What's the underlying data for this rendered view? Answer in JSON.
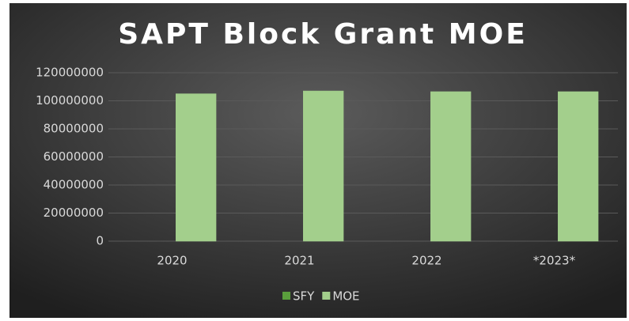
{
  "chart_data": {
    "type": "bar",
    "title": "SAPT Block Grant MOE",
    "categories": [
      "2020",
      "2021",
      "2022",
      "*2023*"
    ],
    "series": [
      {
        "name": "SFY",
        "color": "#5a9e3c",
        "values": [
          0,
          0,
          0,
          0
        ]
      },
      {
        "name": "MOE",
        "color": "#a3cf8c",
        "values": [
          105000000,
          107000000,
          106500000,
          106500000
        ]
      }
    ],
    "ylim": [
      0,
      120000000
    ],
    "yticks": [
      0,
      20000000,
      40000000,
      60000000,
      80000000,
      100000000,
      120000000
    ],
    "grid": true,
    "legend": "bottom"
  }
}
